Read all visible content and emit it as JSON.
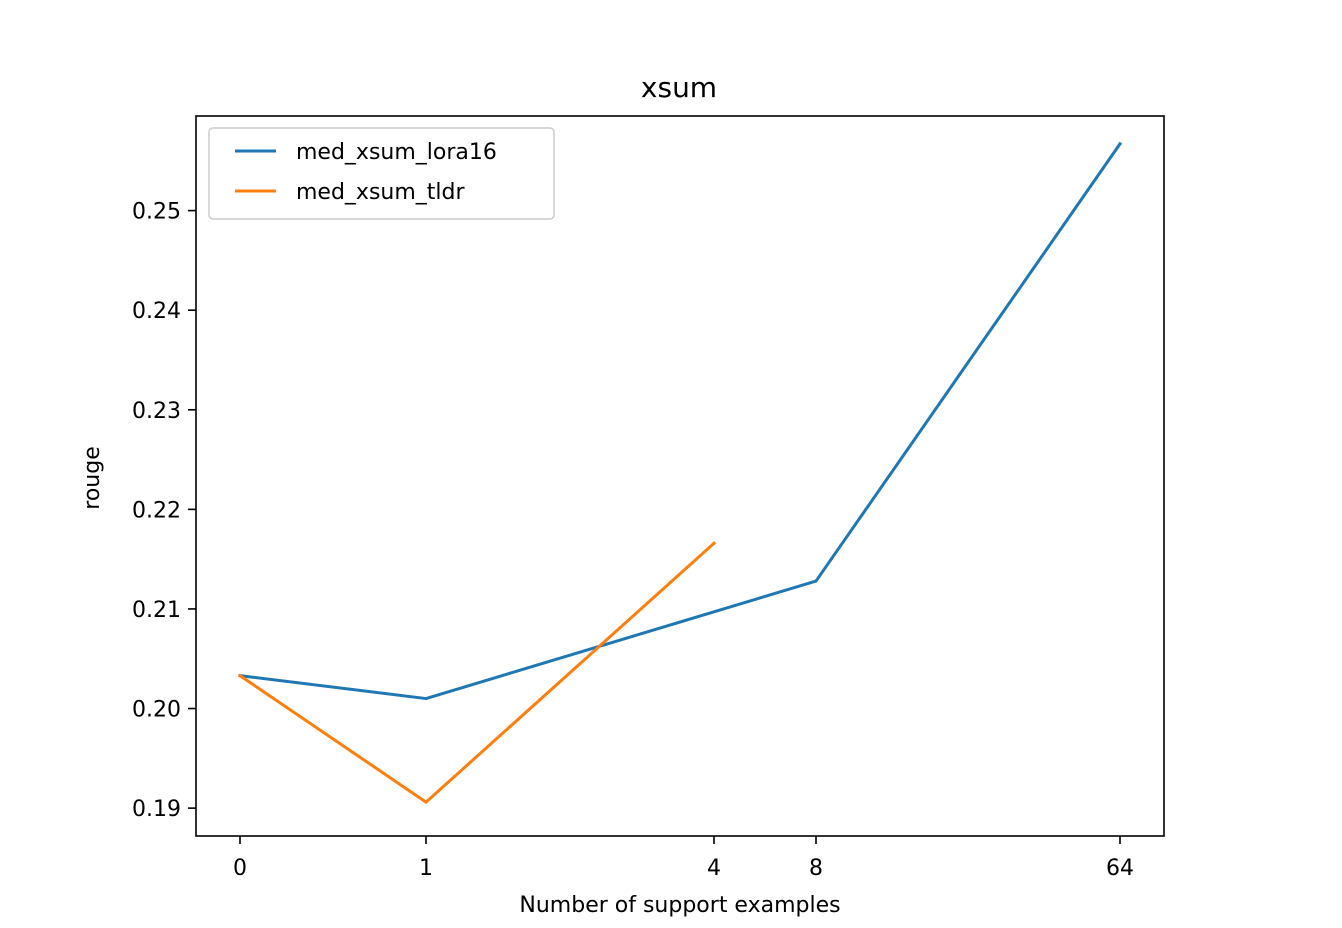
{
  "chart_data": {
    "type": "line",
    "title": "xsum",
    "xlabel": "Number of support examples",
    "ylabel": "rouge",
    "x_tick_labels": [
      "0",
      "1",
      "4",
      "8",
      "64"
    ],
    "y_ticks": [
      0.19,
      0.2,
      0.21,
      0.22,
      0.23,
      0.24,
      0.25
    ],
    "y_tick_labels": [
      "0.19",
      "0.20",
      "0.21",
      "0.22",
      "0.23",
      "0.24",
      "0.25"
    ],
    "ylim": [
      0.1872,
      0.2595
    ],
    "grid": false,
    "legend_position": "upper-left",
    "series": [
      {
        "name": "med_xsum_lora16",
        "color": "#1f77b4",
        "x": [
          "0",
          "1",
          "8",
          "64"
        ],
        "values": [
          0.2033,
          0.201,
          0.2128,
          0.2567
        ]
      },
      {
        "name": "med_xsum_tldr",
        "color": "#ff7f0e",
        "x": [
          "0",
          "1",
          "4"
        ],
        "values": [
          0.2033,
          0.1906,
          0.2166
        ]
      }
    ]
  }
}
